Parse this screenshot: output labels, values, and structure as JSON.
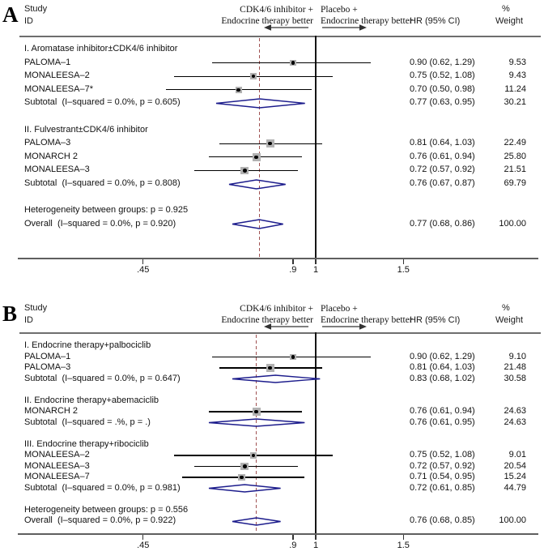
{
  "colors": {
    "diamond_outline": "#1c1c8c",
    "dashed_reference_line": "#a05252",
    "weight_square": "#b2b2b2",
    "point_and_ci": "#000000",
    "axis_line": "#5f5f5f"
  },
  "chart_data": {
    "type": "forest",
    "x_scale": "log",
    "x_axis": {
      "tick_values": [
        0.45,
        0.9,
        1,
        1.5
      ],
      "tick_labels": [
        ".45",
        ".9",
        "1",
        "1.5"
      ],
      "null_line": 1
    },
    "panels": [
      {
        "panel_label": "A",
        "header": {
          "study": "Study",
          "id": "ID",
          "left_better_line1": "CDK4/6 inhibitor +",
          "left_better_line2": "Endocrine therapy better",
          "right_better_line1": "Placebo +",
          "right_better_line2": "Endocrine therapy better",
          "hr_col": "HR (95% CI)",
          "pct": "%",
          "weight_col": "Weight"
        },
        "dashed_line_at": 0.77,
        "rows": [
          {
            "type": "group",
            "label": "I. Aromatase inhibitor±CDK4/6 inhibitor"
          },
          {
            "type": "study",
            "label": "PALOMA–1",
            "hr": 0.9,
            "lo": 0.62,
            "hi": 1.29,
            "hr_text": "0.90 (0.62, 1.29)",
            "weight": 9.53,
            "weight_text": "9.53"
          },
          {
            "type": "study",
            "label": "MONALEESA–2",
            "hr": 0.75,
            "lo": 0.52,
            "hi": 1.08,
            "hr_text": "0.75 (0.52, 1.08)",
            "weight": 9.43,
            "weight_text": "9.43"
          },
          {
            "type": "study",
            "label": "MONALEESA–7*",
            "hr": 0.7,
            "lo": 0.5,
            "hi": 0.98,
            "hr_text": "0.70 (0.50, 0.98)",
            "weight": 11.24,
            "weight_text": "11.24"
          },
          {
            "type": "subtotal",
            "label": "Subtotal  (I–squared = 0.0%, p = 0.605)",
            "hr": 0.77,
            "lo": 0.63,
            "hi": 0.95,
            "hr_text": "0.77 (0.63, 0.95)",
            "weight_text": "30.21"
          },
          {
            "type": "gap"
          },
          {
            "type": "group",
            "label": "II. Fulvestrant±CDK4/6 inhibitor"
          },
          {
            "type": "study",
            "label": "PALOMA–3",
            "hr": 0.81,
            "lo": 0.64,
            "hi": 1.03,
            "hr_text": "0.81 (0.64, 1.03)",
            "weight": 22.49,
            "weight_text": "22.49"
          },
          {
            "type": "study",
            "label": "MONARCH 2",
            "hr": 0.76,
            "lo": 0.61,
            "hi": 0.94,
            "hr_text": "0.76 (0.61, 0.94)",
            "weight": 25.8,
            "weight_text": "25.80"
          },
          {
            "type": "study",
            "label": "MONALEESA–3",
            "hr": 0.72,
            "lo": 0.57,
            "hi": 0.92,
            "hr_text": "0.72 (0.57, 0.92)",
            "weight": 21.51,
            "weight_text": "21.51"
          },
          {
            "type": "subtotal",
            "label": "Subtotal  (I–squared = 0.0%, p = 0.808)",
            "hr": 0.76,
            "lo": 0.67,
            "hi": 0.87,
            "hr_text": "0.76 (0.67, 0.87)",
            "weight_text": "69.79"
          },
          {
            "type": "gap"
          },
          {
            "type": "text",
            "label": "Heterogeneity between groups: p = 0.925"
          },
          {
            "type": "overall",
            "label": "Overall  (I–squared = 0.0%, p = 0.920)",
            "hr": 0.77,
            "lo": 0.68,
            "hi": 0.86,
            "hr_text": "0.77 (0.68, 0.86)",
            "weight_text": "100.00"
          }
        ]
      },
      {
        "panel_label": "B",
        "header": {
          "study": "Study",
          "id": "ID",
          "left_better_line1": "CDK4/6 inhibitor +",
          "left_better_line2": "Endocrine therapy better",
          "right_better_line1": "Placebo +",
          "right_better_line2": "Endocrine therapy better",
          "hr_col": "HR (95% CI)",
          "pct": "%",
          "weight_col": "Weight"
        },
        "dashed_line_at": 0.76,
        "rows": [
          {
            "type": "group",
            "label": "I. Endocrine therapy+palbociclib"
          },
          {
            "type": "study",
            "label": "PALOMA–1",
            "hr": 0.9,
            "lo": 0.62,
            "hi": 1.29,
            "hr_text": "0.90 (0.62, 1.29)",
            "weight": 9.1,
            "weight_text": "9.10"
          },
          {
            "type": "study",
            "label": "PALOMA–3",
            "hr": 0.81,
            "lo": 0.64,
            "hi": 1.03,
            "hr_text": "0.81 (0.64, 1.03)",
            "weight": 21.48,
            "weight_text": "21.48"
          },
          {
            "type": "subtotal",
            "label": "Subtotal  (I–squared = 0.0%, p = 0.647)",
            "hr": 0.83,
            "lo": 0.68,
            "hi": 1.02,
            "hr_text": "0.83 (0.68, 1.02)",
            "weight_text": "30.58"
          },
          {
            "type": "gap"
          },
          {
            "type": "group",
            "label": "II. Endocrine therapy+abemaciclib"
          },
          {
            "type": "study",
            "label": "MONARCH 2",
            "hr": 0.76,
            "lo": 0.61,
            "hi": 0.94,
            "hr_text": "0.76 (0.61, 0.94)",
            "weight": 24.63,
            "weight_text": "24.63"
          },
          {
            "type": "subtotal",
            "label": "Subtotal  (I–squared = .%, p = .)",
            "hr": 0.76,
            "lo": 0.61,
            "hi": 0.95,
            "hr_text": "0.76 (0.61, 0.95)",
            "weight_text": "24.63"
          },
          {
            "type": "gap"
          },
          {
            "type": "group",
            "label": "III. Endocrine therapy+ribociclib"
          },
          {
            "type": "study",
            "label": "MONALEESA–2",
            "hr": 0.75,
            "lo": 0.52,
            "hi": 1.08,
            "hr_text": "0.75 (0.52, 1.08)",
            "weight": 9.01,
            "weight_text": "9.01"
          },
          {
            "type": "study",
            "label": "MONALEESA–3",
            "hr": 0.72,
            "lo": 0.57,
            "hi": 0.92,
            "hr_text": "0.72 (0.57, 0.92)",
            "weight": 20.54,
            "weight_text": "20.54"
          },
          {
            "type": "study",
            "label": "MONALEESA–7",
            "hr": 0.71,
            "lo": 0.54,
            "hi": 0.95,
            "hr_text": "0.71 (0.54, 0.95)",
            "weight": 15.24,
            "weight_text": "15.24"
          },
          {
            "type": "subtotal",
            "label": "Subtotal  (I–squared = 0.0%, p = 0.981)",
            "hr": 0.72,
            "lo": 0.61,
            "hi": 0.85,
            "hr_text": "0.72 (0.61, 0.85)",
            "weight_text": "44.79"
          },
          {
            "type": "gap"
          },
          {
            "type": "text",
            "label": "Heterogeneity between groups: p = 0.556"
          },
          {
            "type": "overall",
            "label": "Overall  (I–squared = 0.0%, p = 0.922)",
            "hr": 0.76,
            "lo": 0.68,
            "hi": 0.85,
            "hr_text": "0.76 (0.68, 0.85)",
            "weight_text": "100.00"
          }
        ]
      }
    ]
  }
}
